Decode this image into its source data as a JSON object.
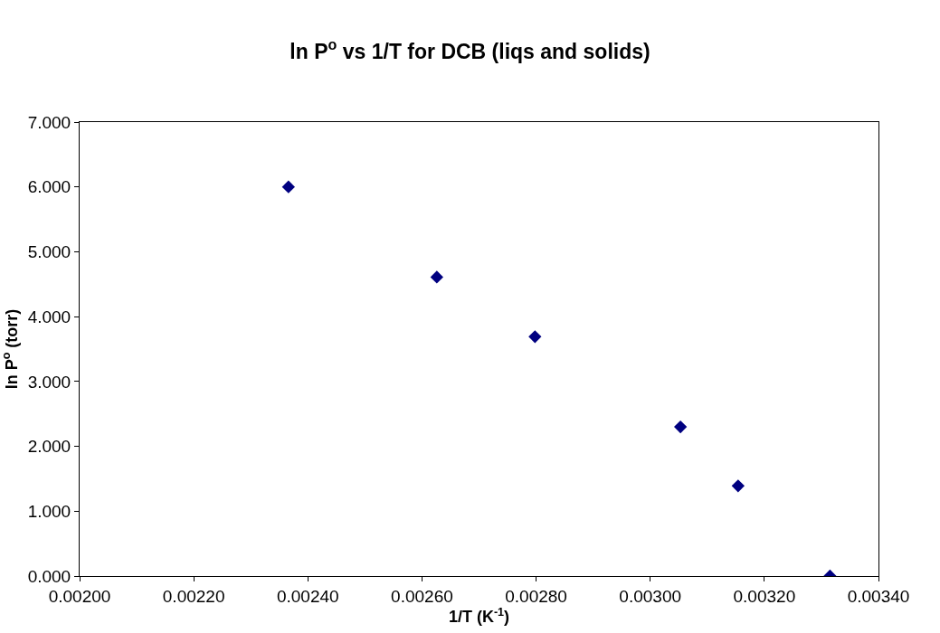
{
  "chart_data": {
    "type": "scatter",
    "title": "ln P$^{o}$ vs 1/T for DCB (liqs and solids)",
    "xlabel": "1/T (K$^{-1}$)",
    "ylabel": "ln P$^{o}$ (torr)",
    "x": [
      0.002366,
      0.002626,
      0.002798,
      0.003053,
      0.003154,
      0.003315
    ],
    "values": [
      6.0,
      4.61,
      3.69,
      2.3,
      1.39,
      0.0
    ],
    "color": "#000080",
    "marker": "diamond",
    "xlim": [
      0.002,
      0.0034
    ],
    "xticks": [
      {
        "value": 0.002,
        "label": "0.00200"
      },
      {
        "value": 0.0022,
        "label": "0.00220"
      },
      {
        "value": 0.0024,
        "label": "0.00240"
      },
      {
        "value": 0.0026,
        "label": "0.00260"
      },
      {
        "value": 0.0028,
        "label": "0.00280"
      },
      {
        "value": 0.003,
        "label": "0.00300"
      },
      {
        "value": 0.0032,
        "label": "0.00320"
      },
      {
        "value": 0.0034,
        "label": "0.00340"
      }
    ],
    "ylim": [
      0,
      7
    ],
    "yticks": [
      {
        "value": 0,
        "label": "0.000"
      },
      {
        "value": 1,
        "label": "1.000"
      },
      {
        "value": 2,
        "label": "2.000"
      },
      {
        "value": 3,
        "label": "3.000"
      },
      {
        "value": 4,
        "label": "4.000"
      },
      {
        "value": 5,
        "label": "5.000"
      },
      {
        "value": 6,
        "label": "6.000"
      },
      {
        "value": 7,
        "label": "7.000"
      }
    ]
  }
}
